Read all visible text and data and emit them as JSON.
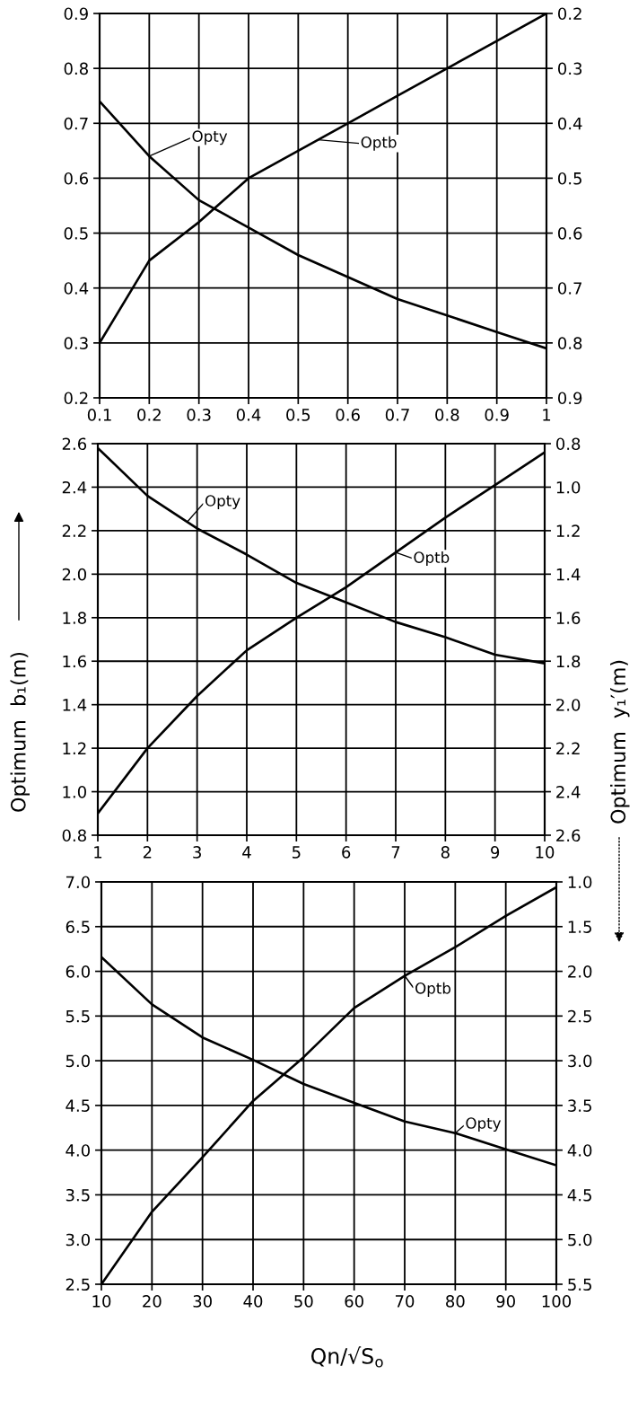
{
  "chart_data": [
    {
      "type": "line",
      "x": [
        0.1,
        0.2,
        0.3,
        0.4,
        0.5,
        0.6,
        0.7,
        0.8,
        0.9,
        1
      ],
      "xlim": [
        0.1,
        1
      ],
      "xticks": [
        0.1,
        0.2,
        0.3,
        0.4,
        0.5,
        0.6,
        0.7,
        0.8,
        0.9,
        1
      ],
      "ylim": [
        0.2,
        0.9
      ],
      "yticks": [
        0.2,
        0.3,
        0.4,
        0.5,
        0.6,
        0.7,
        0.8,
        0.9
      ],
      "y2lim": [
        0.9,
        0.2
      ],
      "y2ticks": [
        0.2,
        0.3,
        0.4,
        0.5,
        0.6,
        0.7,
        0.8,
        0.9
      ],
      "grid": true,
      "annotations": [
        {
          "text": "Opty",
          "x": 0.2,
          "y": 0.64
        },
        {
          "text": "Optb",
          "x": 0.54,
          "y": 0.67
        }
      ],
      "series": [
        {
          "color": "#000000",
          "axis": "y2",
          "values": [
            0.36,
            0.46,
            0.54,
            0.59,
            0.64,
            0.68,
            0.72,
            0.75,
            0.78,
            0.81
          ]
        },
        {
          "color": "#000000",
          "values": [
            0.3,
            0.45,
            0.52,
            0.6,
            0.65,
            0.7,
            0.75,
            0.8,
            0.85,
            0.9
          ]
        }
      ]
    },
    {
      "type": "line",
      "x": [
        1,
        2,
        3,
        4,
        5,
        6,
        7,
        8,
        9,
        10
      ],
      "xlim": [
        1,
        10
      ],
      "xticks": [
        1,
        2,
        3,
        4,
        5,
        6,
        7,
        8,
        9,
        10
      ],
      "ylim": [
        0.8,
        2.6
      ],
      "yticks": [
        0.8,
        {
          "value": 1,
          "label": "1.0"
        },
        1.2,
        1.4,
        1.6,
        1.8,
        {
          "value": 2,
          "label": "2.0"
        },
        2.2,
        2.4,
        2.6
      ],
      "y2lim": [
        2.6,
        0.8
      ],
      "y2ticks": [
        0.8,
        {
          "value": 1,
          "label": "1.0"
        },
        1.2,
        1.4,
        1.6,
        1.8,
        {
          "value": 2,
          "label": "2.0"
        },
        2.2,
        2.4,
        2.6
      ],
      "grid": true,
      "ylabel": "Optimum  b₁(m)",
      "y2label": "Optimum  y₁′(m)",
      "annotations": [
        {
          "text": "Opty",
          "x": 2.8,
          "y": 2.24
        },
        {
          "text": "Optb",
          "x": 7,
          "y": 2.1
        }
      ],
      "series": [
        {
          "color": "#000000",
          "axis": "y2",
          "values": [
            0.82,
            1.04,
            1.19,
            1.31,
            1.44,
            1.53,
            1.62,
            1.69,
            1.77,
            1.81
          ]
        },
        {
          "color": "#000000",
          "values": [
            0.9,
            1.2,
            1.44,
            1.65,
            1.8,
            1.94,
            2.1,
            2.26,
            2.41,
            2.56
          ]
        }
      ]
    },
    {
      "type": "line",
      "x": [
        10,
        20,
        30,
        40,
        50,
        60,
        70,
        80,
        90,
        100
      ],
      "xlim": [
        10,
        100
      ],
      "xticks": [
        10,
        20,
        30,
        40,
        50,
        60,
        70,
        80,
        90,
        100
      ],
      "ylim": [
        2.5,
        7
      ],
      "yticks": [
        2.5,
        {
          "value": 3,
          "label": "3.0"
        },
        3.5,
        {
          "value": 4,
          "label": "4.0"
        },
        4.5,
        {
          "value": 5,
          "label": "5.0"
        },
        5.5,
        {
          "value": 6,
          "label": "6.0"
        },
        6.5,
        {
          "value": 7,
          "label": "7.0"
        }
      ],
      "y2lim": [
        5.5,
        1
      ],
      "y2ticks": [
        {
          "value": 1,
          "label": "1.0"
        },
        1.5,
        {
          "value": 2,
          "label": "2.0"
        },
        2.5,
        {
          "value": 3,
          "label": "3.0"
        },
        3.5,
        {
          "value": 4,
          "label": "4.0"
        },
        4.5,
        {
          "value": 5,
          "label": "5.0"
        },
        5.5
      ],
      "grid": true,
      "xlabel": "Qn/√S$_{o}$",
      "annotations": [
        {
          "text": "Optb",
          "x": 70,
          "y": 5.95
        },
        {
          "text": "Opty",
          "x": 80,
          "y": 4.19
        }
      ],
      "series": [
        {
          "color": "#000000",
          "axis": "y2",
          "values": [
            1.84,
            2.37,
            2.74,
            2.99,
            3.26,
            3.47,
            3.68,
            3.81,
            3.99,
            4.17
          ]
        },
        {
          "color": "#000000",
          "values": [
            2.5,
            3.31,
            3.92,
            4.55,
            5.04,
            5.59,
            5.95,
            6.27,
            6.62,
            6.94
          ]
        }
      ]
    }
  ]
}
